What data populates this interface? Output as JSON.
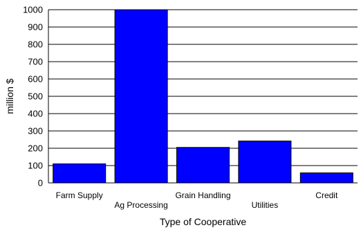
{
  "chart_data": {
    "type": "bar",
    "title": "",
    "xlabel": "Type of Cooperative",
    "ylabel": "million $",
    "categories": [
      "Farm Supply",
      "Ag Processing",
      "Grain Handling",
      "Utilities",
      "Credit"
    ],
    "values": [
      110,
      1000,
      205,
      242,
      58
    ],
    "ylim": [
      0,
      1000
    ],
    "yticks": [
      0,
      100,
      200,
      300,
      400,
      500,
      600,
      700,
      800,
      900,
      1000
    ],
    "grid": true,
    "legend": "none",
    "colors": {
      "bar": "#0000ff",
      "outline": "#000000",
      "grid": "#000000"
    }
  }
}
